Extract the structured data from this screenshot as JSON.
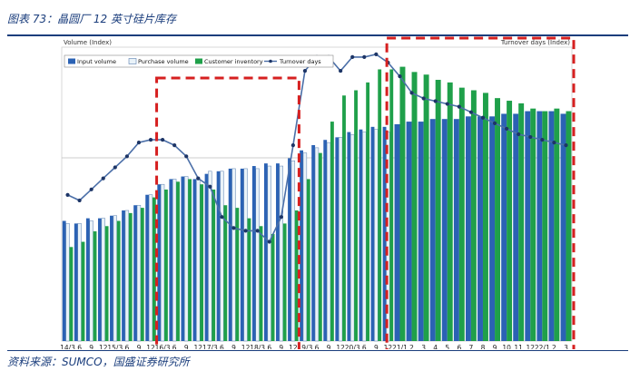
{
  "figure_title": "图表 73：晶圆厂 12 英寸硅片库存",
  "source": "资料来源：SUMCO，国盛证券研究所",
  "colors": {
    "input": "#2b62b4",
    "purchase": "#e9f2f8",
    "purchase_edge": "#5a7fb0",
    "inventory": "#1fa04a",
    "turnover": "#4b6fa8",
    "turnover_point": "#1d3566",
    "highlight": "#d62020",
    "text_blue": "#1a3d7c"
  },
  "chart_data": {
    "type": "bar",
    "ylabel_left": "Volume (Index)",
    "ylabel_right": "Turnover days (Index)",
    "legend": [
      "Input volume",
      "Purchase volume",
      "Customer inventory",
      "Turnover days"
    ],
    "x_tick_labels": [
      "14/3",
      "6",
      "9",
      "12",
      "15/3",
      "6",
      "9",
      "12",
      "16/3",
      "6",
      "9",
      "12",
      "17/3",
      "6",
      "9",
      "12",
      "18/3",
      "6",
      "9",
      "12",
      "19/3",
      "6",
      "9",
      "12",
      "20/3",
      "6",
      "9",
      "12",
      "21/1",
      "2",
      "3",
      "4",
      "5",
      "6",
      "7",
      "8",
      "9",
      "10",
      "11",
      "12",
      "22/1",
      "2",
      "3"
    ],
    "quarterly_periods": 28,
    "monthly_periods": 15,
    "volume_ylim": [
      0,
      100
    ],
    "turnover_ylim": [
      0,
      100
    ],
    "series": [
      {
        "name": "Input volume",
        "kind": "bar",
        "values": [
          46,
          45,
          47,
          47,
          48,
          50,
          52,
          56,
          60,
          62,
          63,
          62,
          64,
          65,
          66,
          66,
          67,
          68,
          68,
          70,
          73,
          75,
          77,
          78,
          80,
          81,
          82,
          82,
          83,
          84,
          84,
          85,
          85,
          85,
          86,
          86,
          86,
          87,
          87,
          88,
          88,
          88,
          87
        ]
      },
      {
        "name": "Purchase volume",
        "kind": "bar",
        "values": [
          45,
          45,
          46,
          47,
          48,
          50,
          52,
          56,
          60,
          62,
          63,
          62,
          65,
          65,
          66,
          66,
          66,
          67,
          67,
          69,
          72,
          74,
          76,
          78,
          79,
          80,
          81,
          80,
          82,
          84,
          84,
          85,
          85,
          85,
          86,
          86,
          86,
          87,
          87,
          88,
          88,
          88,
          87
        ]
      },
      {
        "name": "Customer inventory",
        "kind": "bar",
        "values": [
          36,
          38,
          42,
          44,
          46,
          49,
          51,
          55,
          58,
          61,
          62,
          60,
          58,
          52,
          51,
          47,
          44,
          41,
          45,
          50,
          62,
          72,
          84,
          94,
          96,
          99,
          104,
          104,
          105,
          103,
          102,
          100,
          99,
          97,
          96,
          95,
          93,
          92,
          91,
          89,
          88,
          89,
          88
        ]
      },
      {
        "name": "Turnover days",
        "kind": "line",
        "values": [
          53,
          51,
          55,
          59,
          63,
          67,
          72,
          73,
          73,
          71,
          67,
          59,
          56,
          45,
          41,
          40,
          40,
          36,
          45,
          71,
          98,
          103,
          103,
          98,
          103,
          103,
          104,
          101,
          96,
          90,
          88,
          87,
          86,
          85,
          83,
          81,
          79,
          77,
          75,
          74,
          73,
          72,
          71
        ]
      }
    ]
  }
}
